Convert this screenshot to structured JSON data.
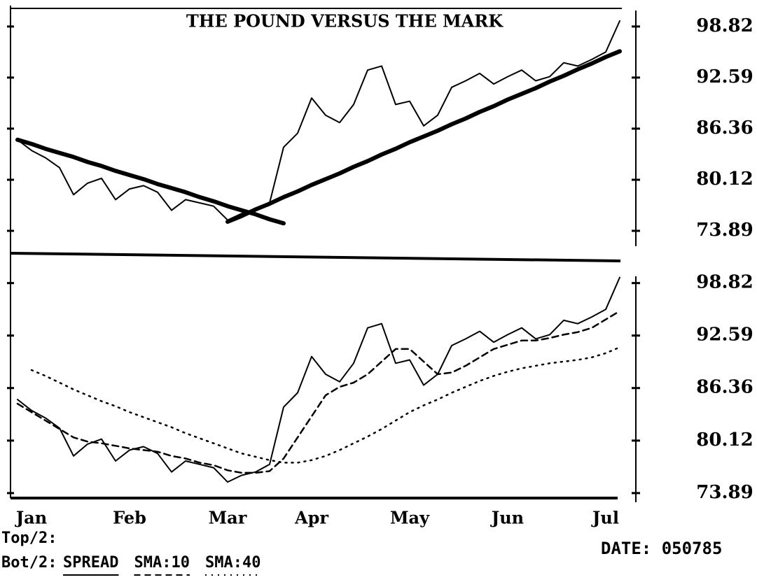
{
  "chart_data": [
    {
      "type": "line",
      "title": "THE POUND VERSUS THE MARK",
      "ylim": [
        71.5,
        101.2
      ],
      "yticks": [
        98.82,
        92.59,
        86.36,
        80.12,
        73.89
      ],
      "series": [
        {
          "color": "#000000",
          "style": "solid",
          "values": [
            85.0,
            83.7,
            82.8,
            81.6,
            78.3,
            79.7,
            80.3,
            77.7,
            79.0,
            79.4,
            78.6,
            76.4,
            77.7,
            77.3,
            76.9,
            75.2,
            76.0,
            76.4,
            77.3,
            84.1,
            85.8,
            90.1,
            88.0,
            87.1,
            89.3,
            93.5,
            94.0,
            89.3,
            89.7,
            86.7,
            88.0,
            91.4,
            92.2,
            93.1,
            91.8,
            92.7,
            93.5,
            92.2,
            92.7,
            94.4,
            94.0,
            94.8,
            95.7,
            99.5
          ]
        },
        {
          "color": "#000000",
          "style": "bold",
          "values": [
            85.0,
            84.5,
            83.9,
            83.4,
            82.9,
            82.3,
            81.8,
            81.2,
            80.7,
            80.2,
            79.6,
            79.1,
            78.6,
            78.0,
            77.5,
            76.9,
            76.4,
            75.9,
            75.3,
            74.8,
            null,
            null,
            null,
            null,
            null,
            null,
            null,
            null,
            null,
            null,
            null,
            null,
            null,
            null,
            null,
            null,
            null,
            null,
            null,
            null,
            null,
            null,
            null,
            null
          ]
        },
        {
          "color": "#000000",
          "style": "bold",
          "values": [
            null,
            null,
            null,
            null,
            null,
            null,
            null,
            null,
            null,
            null,
            null,
            null,
            null,
            null,
            null,
            75.0,
            75.7,
            76.5,
            77.2,
            78.0,
            78.7,
            79.5,
            80.2,
            80.9,
            81.7,
            82.4,
            83.2,
            83.9,
            84.7,
            85.4,
            86.1,
            86.9,
            87.6,
            88.4,
            89.1,
            89.9,
            90.6,
            91.3,
            92.1,
            92.8,
            93.6,
            94.3,
            95.1,
            95.8
          ]
        }
      ]
    },
    {
      "type": "line",
      "categories": [
        null,
        "Jan",
        null,
        null,
        null,
        null,
        null,
        null,
        "Feb",
        null,
        null,
        null,
        null,
        null,
        null,
        "Mar",
        null,
        null,
        null,
        null,
        null,
        "Apr",
        null,
        null,
        null,
        null,
        null,
        null,
        "May",
        null,
        null,
        null,
        null,
        null,
        null,
        "Jun",
        null,
        null,
        null,
        null,
        null,
        null,
        "Jul",
        null
      ],
      "ylim": [
        73.3,
        101.7
      ],
      "yticks": [
        98.82,
        92.59,
        86.36,
        80.12,
        73.89
      ],
      "series": [
        {
          "name": "SPREAD",
          "color": "#000000",
          "style": "solid",
          "values": [
            85.0,
            83.7,
            82.8,
            81.6,
            78.3,
            79.7,
            80.3,
            77.7,
            79.0,
            79.4,
            78.6,
            76.4,
            77.7,
            77.3,
            76.9,
            75.2,
            76.0,
            76.4,
            77.3,
            84.1,
            85.8,
            90.1,
            88.0,
            87.1,
            89.3,
            93.5,
            94.0,
            89.3,
            89.7,
            86.7,
            88.0,
            91.4,
            92.2,
            93.1,
            91.8,
            92.7,
            93.5,
            92.2,
            92.7,
            94.4,
            94.0,
            94.8,
            95.7,
            99.5
          ]
        },
        {
          "name": "SMA:10",
          "color": "#000000",
          "style": "dashed",
          "values": [
            84.5,
            83.5,
            82.5,
            81.5,
            80.5,
            80.0,
            79.8,
            79.5,
            79.2,
            79.0,
            78.8,
            78.3,
            78.0,
            77.5,
            77.2,
            76.6,
            76.3,
            76.3,
            76.5,
            78.0,
            80.5,
            83.0,
            85.5,
            86.5,
            87.0,
            88.0,
            89.5,
            91.0,
            91.0,
            89.5,
            88.0,
            88.2,
            89.0,
            90.0,
            91.0,
            91.5,
            92.0,
            92.0,
            92.3,
            92.7,
            93.0,
            93.5,
            94.5,
            95.5
          ]
        },
        {
          "name": "SMA:40",
          "color": "#000000",
          "style": "dotted",
          "values": [
            null,
            88.5,
            87.8,
            87.0,
            86.2,
            85.5,
            84.8,
            84.2,
            83.5,
            82.9,
            82.3,
            81.7,
            81.0,
            80.4,
            79.8,
            79.2,
            78.6,
            78.2,
            77.8,
            77.5,
            77.5,
            77.8,
            78.3,
            79.0,
            79.8,
            80.6,
            81.5,
            82.5,
            83.5,
            84.3,
            85.0,
            85.8,
            86.5,
            87.2,
            87.8,
            88.3,
            88.7,
            89.0,
            89.3,
            89.5,
            89.7,
            90.0,
            90.5,
            91.2
          ]
        }
      ]
    }
  ],
  "footer": {
    "top_label": "Top/2:",
    "bottom_label": "Bot/2:",
    "date": "DATE: 050785"
  }
}
